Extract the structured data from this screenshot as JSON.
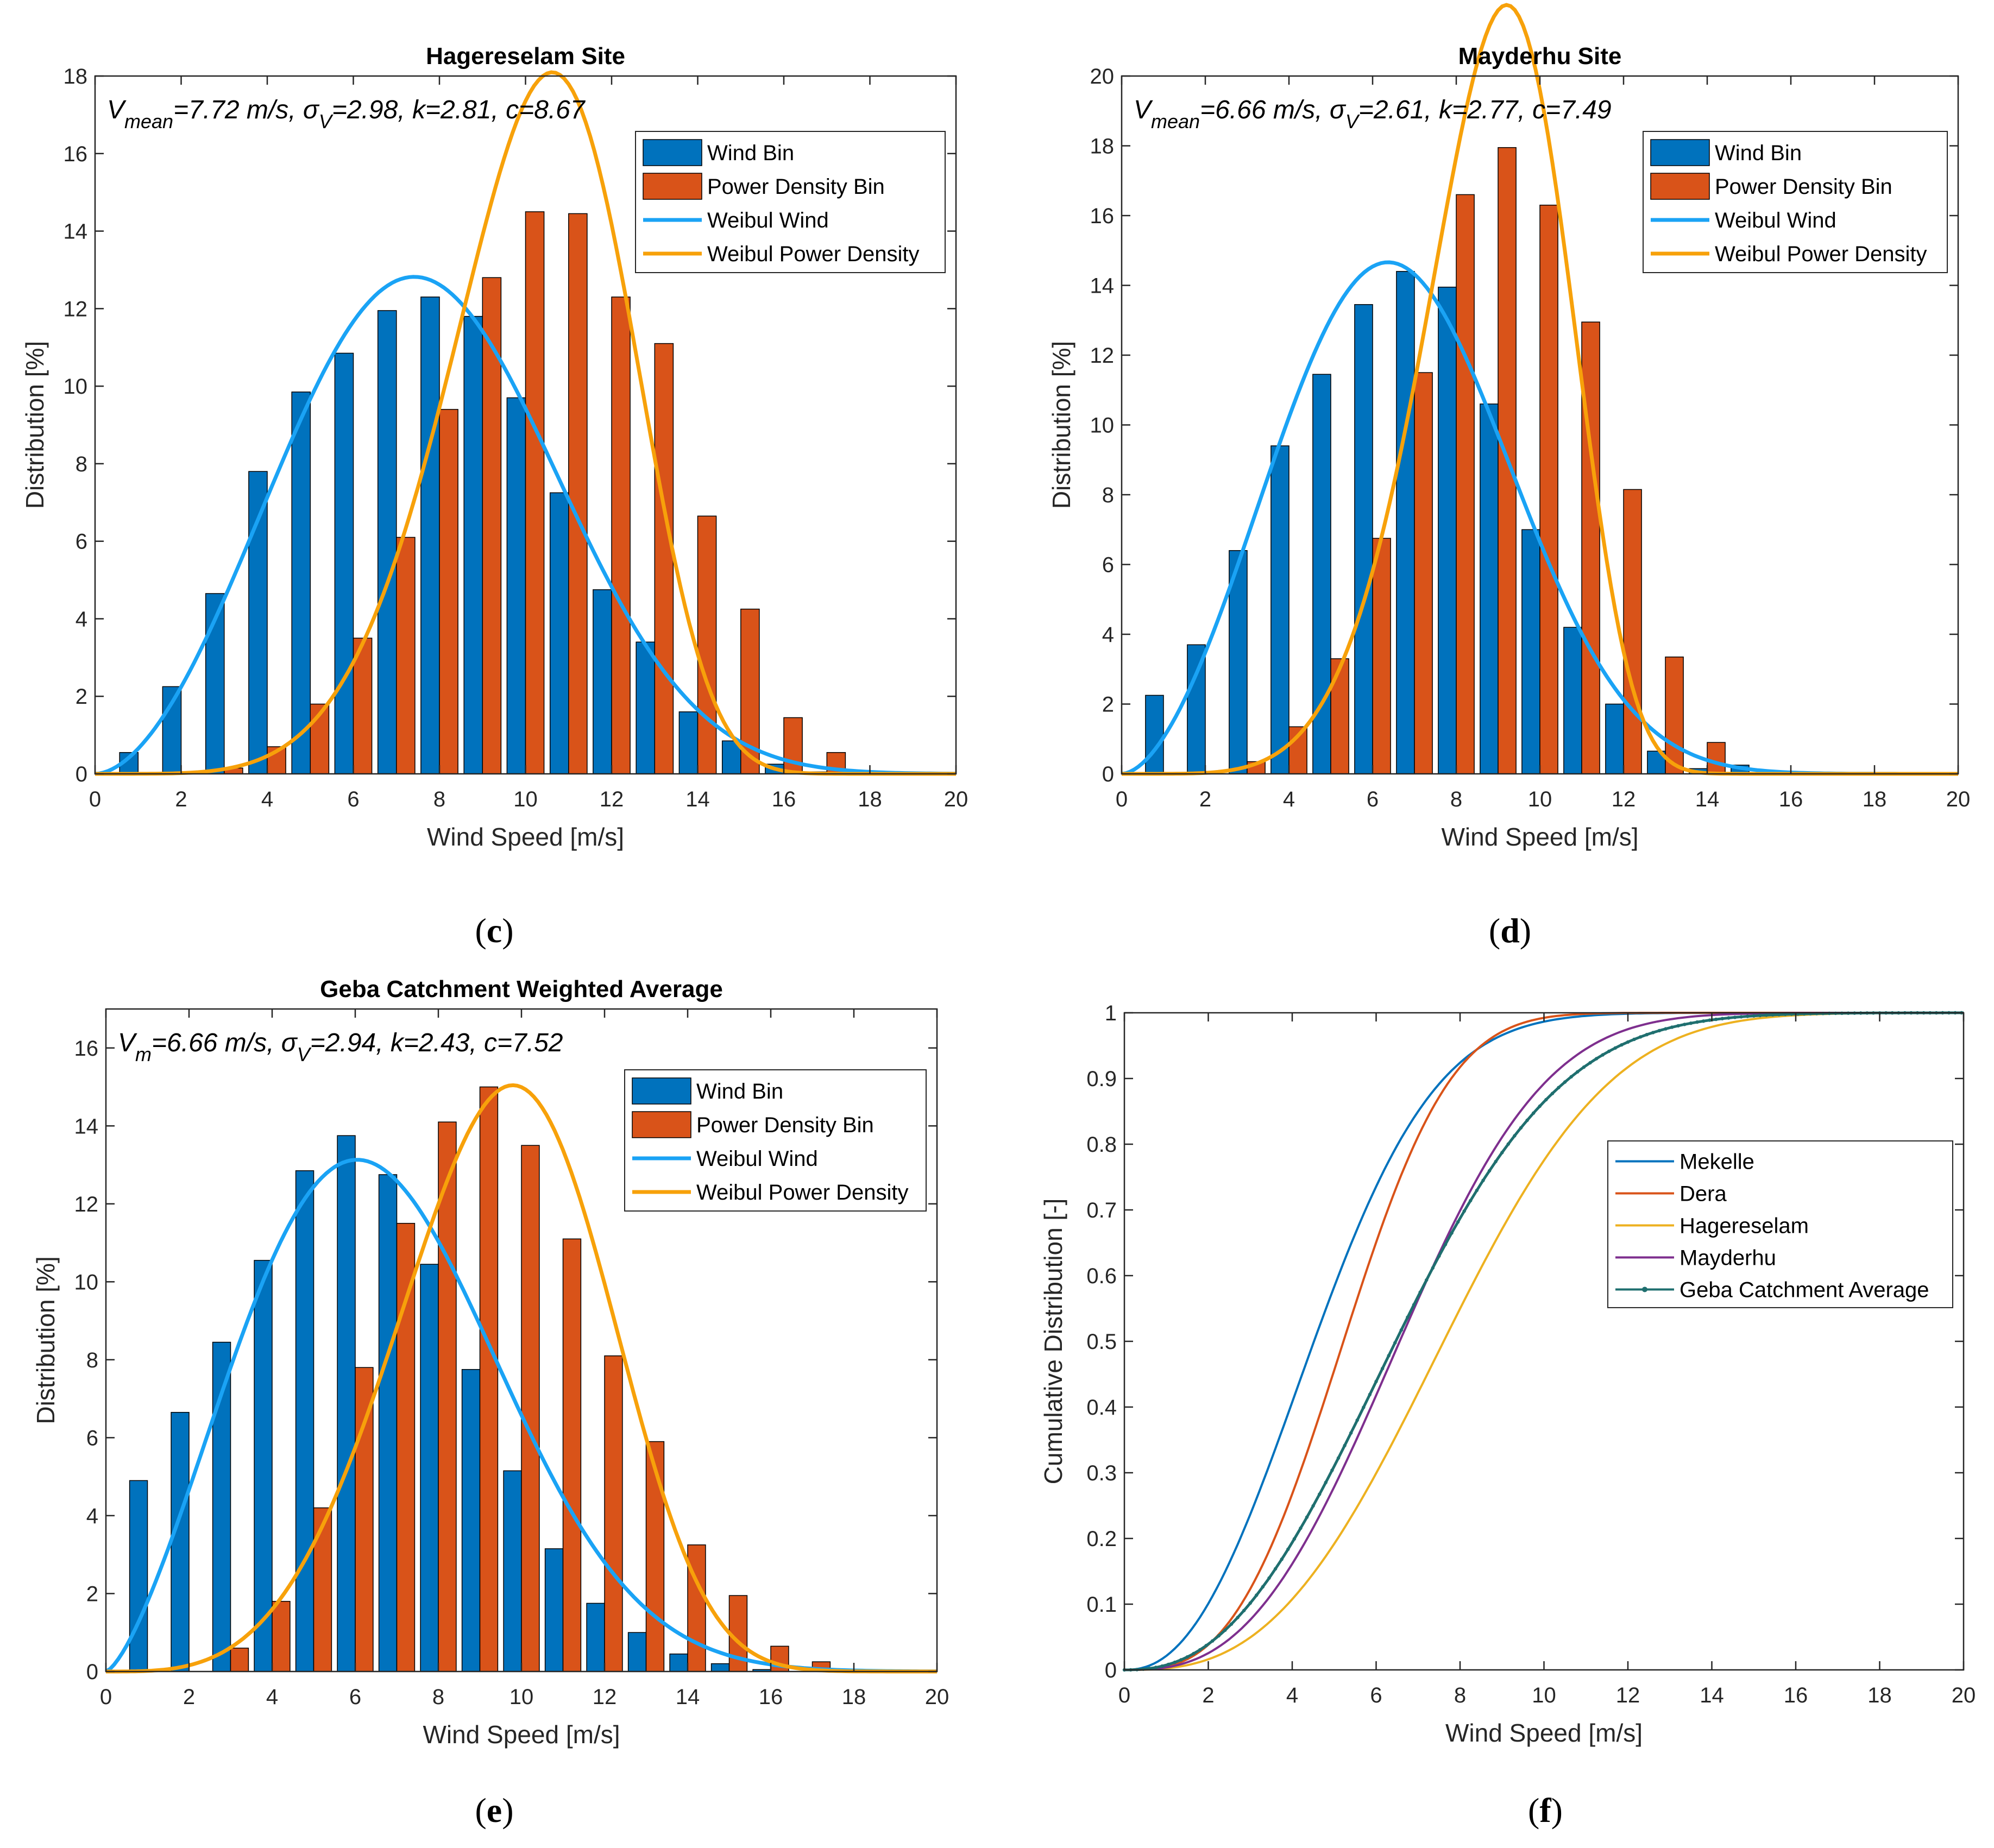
{
  "chart_data": [
    {
      "id": "c",
      "type": "bar",
      "panel_label": "c",
      "title": "Hagereselam Site",
      "xlabel": "Wind Speed [m/s]",
      "ylabel": "Distribution [%]",
      "xlim": [
        0,
        20
      ],
      "ylim": [
        0,
        18
      ],
      "xticks": [
        0,
        2,
        4,
        6,
        8,
        10,
        12,
        14,
        16,
        18,
        20
      ],
      "yticks": [
        0,
        2,
        4,
        6,
        8,
        10,
        12,
        14,
        16,
        18
      ],
      "grid": false,
      "legend_position": "upper-right",
      "annotation": {
        "v_sym": "V",
        "v_sub": "mean",
        "v_val": "=7.72 m/s, ",
        "sigma_sym": "σ",
        "sigma_sub": "V",
        "rest": "=2.98, k=2.81, c=8.67"
      },
      "bin_centers": [
        1,
        2,
        3,
        4,
        5,
        6,
        7,
        8,
        9,
        10,
        11,
        12,
        13,
        14,
        15,
        16,
        17,
        18,
        19
      ],
      "series": [
        {
          "name": "Wind Bin",
          "kind": "bar",
          "offset": -1,
          "values": [
            0.55,
            2.25,
            4.65,
            7.8,
            9.85,
            10.85,
            11.95,
            12.3,
            11.8,
            9.7,
            7.25,
            4.75,
            3.4,
            1.6,
            0.85,
            0.25,
            0.05,
            0,
            0
          ]
        },
        {
          "name": "Power Density Bin",
          "kind": "bar",
          "offset": 1,
          "values": [
            0,
            0,
            0.15,
            0.7,
            1.8,
            3.5,
            6.1,
            9.4,
            12.8,
            14.5,
            14.45,
            12.3,
            11.1,
            6.65,
            4.25,
            1.45,
            0.55,
            0,
            0
          ]
        },
        {
          "name": "Weibul Wind",
          "kind": "weibull",
          "k": 2.81,
          "c": 8.67,
          "scale": 1.0
        },
        {
          "name": "Weibul Power Density",
          "kind": "weibull",
          "k": 5.6,
          "c": 11.0,
          "scale": 0.95
        }
      ]
    },
    {
      "id": "d",
      "type": "bar",
      "panel_label": "d",
      "title": "Mayderhu Site",
      "xlabel": "Wind Speed [m/s]",
      "ylabel": "Distribution [%]",
      "xlim": [
        0,
        20
      ],
      "ylim": [
        0,
        20
      ],
      "xticks": [
        0,
        2,
        4,
        6,
        8,
        10,
        12,
        14,
        16,
        18,
        20
      ],
      "yticks": [
        0,
        2,
        4,
        6,
        8,
        10,
        12,
        14,
        16,
        18,
        20
      ],
      "grid": false,
      "legend_position": "upper-right",
      "annotation": {
        "v_sym": "V",
        "v_sub": "mean",
        "v_val": "=6.66 m/s, ",
        "sigma_sym": "σ",
        "sigma_sub": "V",
        "rest": "=2.61, k=2.77, c=7.49"
      },
      "bin_centers": [
        1,
        2,
        3,
        4,
        5,
        6,
        7,
        8,
        9,
        10,
        11,
        12,
        13,
        14,
        15,
        16,
        17,
        18,
        19
      ],
      "series": [
        {
          "name": "Wind Bin",
          "kind": "bar",
          "offset": -1,
          "values": [
            2.25,
            3.7,
            6.4,
            9.4,
            11.45,
            13.45,
            14.4,
            13.95,
            10.6,
            7.0,
            4.2,
            2.0,
            0.65,
            0.15,
            0.25,
            0,
            0,
            0,
            0
          ]
        },
        {
          "name": "Power Density Bin",
          "kind": "bar",
          "offset": 1,
          "values": [
            0,
            0,
            0.35,
            1.35,
            3.3,
            6.75,
            11.5,
            16.6,
            17.95,
            16.3,
            12.95,
            8.15,
            3.35,
            0.9,
            0,
            0,
            0,
            0,
            0
          ]
        },
        {
          "name": "Weibul Wind",
          "kind": "weibull",
          "k": 2.77,
          "c": 7.49,
          "scale": 1.0
        },
        {
          "name": "Weibul Power Density",
          "kind": "weibull",
          "k": 5.9,
          "c": 9.5,
          "scale": 0.95
        }
      ]
    },
    {
      "id": "e",
      "type": "bar",
      "panel_label": "e",
      "title": "Geba Catchment Weighted Average",
      "xlabel": "Wind Speed [m/s]",
      "ylabel": "Distribution [%]",
      "xlim": [
        0,
        20
      ],
      "ylim": [
        0,
        17
      ],
      "xticks": [
        0,
        2,
        4,
        6,
        8,
        10,
        12,
        14,
        16,
        18,
        20
      ],
      "yticks": [
        0,
        2,
        4,
        6,
        8,
        10,
        12,
        14,
        16
      ],
      "grid": false,
      "legend_position": "upper-right",
      "annotation": {
        "v_sym": "V",
        "v_sub": "m",
        "v_val": "=6.66 m/s, ",
        "sigma_sym": "σ",
        "sigma_sub": "V",
        "rest": "=2.94, k=2.43, c=7.52"
      },
      "bin_centers": [
        1,
        2,
        3,
        4,
        5,
        6,
        7,
        8,
        9,
        10,
        11,
        12,
        13,
        14,
        15,
        16,
        17,
        18,
        19
      ],
      "series": [
        {
          "name": "Wind Bin",
          "kind": "bar",
          "offset": -1,
          "values": [
            4.9,
            6.65,
            8.45,
            10.55,
            12.85,
            13.75,
            12.75,
            10.45,
            7.75,
            5.15,
            3.15,
            1.75,
            1.0,
            0.45,
            0.2,
            0.05,
            0,
            0,
            0
          ]
        },
        {
          "name": "Power Density Bin",
          "kind": "bar",
          "offset": 1,
          "values": [
            0,
            0,
            0.6,
            1.8,
            4.2,
            7.8,
            11.5,
            14.1,
            15.0,
            13.5,
            11.1,
            8.1,
            5.9,
            3.25,
            1.95,
            0.65,
            0.25,
            0,
            0
          ]
        },
        {
          "name": "Weibul Wind",
          "kind": "weibull",
          "k": 2.43,
          "c": 7.52,
          "scale": 1.0
        },
        {
          "name": "Weibul Power Density",
          "kind": "weibull",
          "k": 4.35,
          "c": 10.4,
          "scale": 0.95
        }
      ]
    },
    {
      "id": "f",
      "type": "line",
      "panel_label": "f",
      "title": "",
      "xlabel": "Wind Speed [m/s]",
      "ylabel": "Cumulative Distribution [-]",
      "xlim": [
        0,
        20
      ],
      "ylim": [
        0,
        1
      ],
      "xticks": [
        0,
        2,
        4,
        6,
        8,
        10,
        12,
        14,
        16,
        18,
        20
      ],
      "yticks": [
        0,
        0.1,
        0.2,
        0.3,
        0.4,
        0.5,
        0.6,
        0.7,
        0.8,
        0.9,
        1
      ],
      "grid": false,
      "legend_position": "middle-right",
      "series": [
        {
          "name": "Mekelle",
          "kind": "cdf",
          "k": 2.3,
          "c": 5.3
        },
        {
          "name": "Dera",
          "kind": "cdf",
          "k": 3.0,
          "c": 5.9
        },
        {
          "name": "Hagereselam",
          "kind": "cdf",
          "k": 2.81,
          "c": 8.67
        },
        {
          "name": "Mayderhu",
          "kind": "cdf",
          "k": 2.77,
          "c": 7.49
        },
        {
          "name": "Geba Catchment Average",
          "kind": "cdf",
          "k": 2.43,
          "c": 7.52,
          "markers": true
        }
      ]
    }
  ],
  "colors": {
    "wind_bin": "#0072BD",
    "power_bin": "#D95319",
    "weibull_wind": "#1AA3F5",
    "weibull_power": "#F7A10A",
    "cdf": [
      "#0072BD",
      "#D95319",
      "#EDB120",
      "#7E2F8E",
      "#1F6F6F"
    ]
  }
}
